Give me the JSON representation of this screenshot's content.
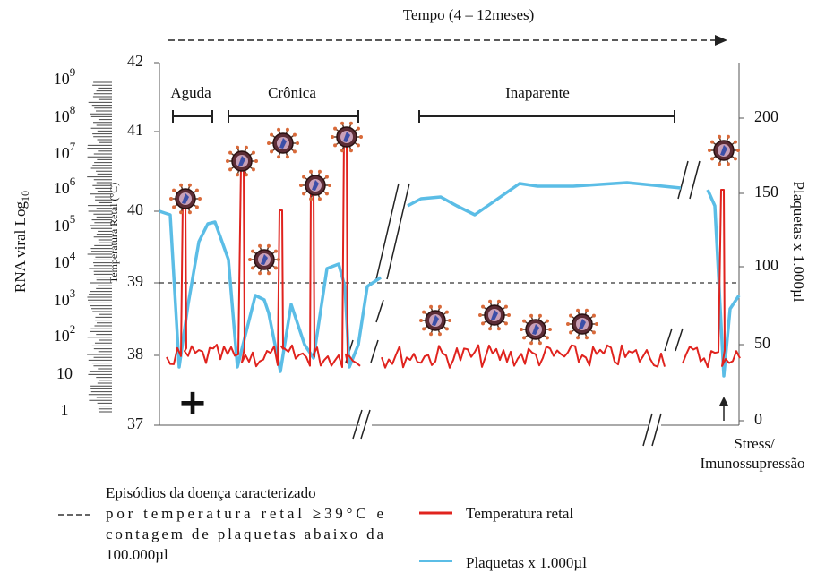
{
  "time_title": "Tempo (4 – 12meses)",
  "rna_axis": {
    "label": "RNA viral Log",
    "label_subscript": "10",
    "ticks": [
      {
        "base": "10",
        "exp": "9"
      },
      {
        "base": "10",
        "exp": "8"
      },
      {
        "base": "10",
        "exp": "7"
      },
      {
        "base": "10",
        "exp": "6"
      },
      {
        "base": "10",
        "exp": "5"
      },
      {
        "base": "10",
        "exp": "4"
      },
      {
        "base": "10",
        "exp": "3"
      },
      {
        "base": "10",
        "exp": "2"
      },
      {
        "base": "10"
      },
      {
        "base": "1"
      }
    ]
  },
  "temperature_axis": {
    "label": "Temperatura Retal (°C)",
    "ticks": [
      "42",
      "41",
      "40",
      "39",
      "38",
      "37"
    ]
  },
  "platelet_axis": {
    "label": "Plaquetas x 1.000µl",
    "ticks": [
      "200",
      "150",
      "100",
      "50",
      "0"
    ]
  },
  "phases": [
    "Aguda",
    "Crônica",
    "Inaparente"
  ],
  "marker": "+",
  "stress_label": [
    "Stress/",
    "Imunossupressão"
  ],
  "legend": {
    "threshold": [
      "Episódios da doença caracterizado",
      "por temperatura retal ≥39°C e",
      "contagem de plaquetas abaixo da",
      "100.000µl"
    ],
    "temperature": "Temperatura retal",
    "platelets": "Plaquetas x 1.000µl"
  }
}
